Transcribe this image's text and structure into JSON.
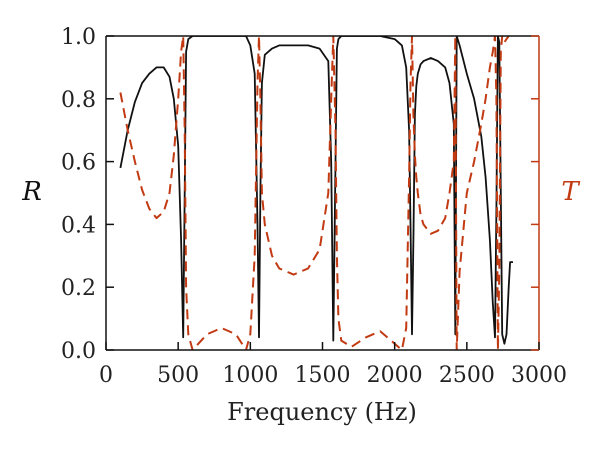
{
  "chart_data": {
    "type": "line",
    "xlabel": "Frequency (Hz)",
    "ylabel": "R",
    "y2label": "T",
    "xlim": [
      0,
      3000
    ],
    "ylim": [
      0,
      1
    ],
    "y2lim": [
      0,
      1
    ],
    "xticks": [
      "0",
      "500",
      "1000",
      "1500",
      "2000",
      "2500",
      "3000"
    ],
    "yticks": [
      "0.0",
      "0.2",
      "0.4",
      "0.6",
      "0.8",
      "1.0"
    ],
    "y2ticks": [
      "0.0",
      "0.2",
      "0.4",
      "0.6",
      "0.8",
      "1.0"
    ],
    "grid": false,
    "colors": {
      "R": "#111111",
      "T": "#c23a12",
      "axis": "#111111",
      "axis2": "#c23a12"
    },
    "series": [
      {
        "key": "R",
        "axis": "left",
        "style": "solid",
        "x": [
          100,
          150,
          200,
          250,
          300,
          350,
          400,
          440,
          470,
          500,
          520,
          535,
          545,
          555,
          570,
          600,
          700,
          800,
          900,
          970,
          1000,
          1030,
          1050,
          1060,
          1070,
          1080,
          1100,
          1150,
          1200,
          1300,
          1400,
          1480,
          1540,
          1560,
          1575,
          1590,
          1600,
          1610,
          1630,
          1700,
          1800,
          1900,
          2000,
          2050,
          2080,
          2100,
          2110,
          2120,
          2130,
          2140,
          2150,
          2160,
          2180,
          2200,
          2250,
          2300,
          2350,
          2380,
          2410,
          2420,
          2430,
          2450,
          2500,
          2550,
          2600,
          2630,
          2660,
          2680,
          2695,
          2705,
          2715,
          2725,
          2735,
          2745,
          2760,
          2775,
          2790,
          2800,
          2810,
          2820
        ],
        "y": [
          0.58,
          0.7,
          0.79,
          0.85,
          0.88,
          0.9,
          0.9,
          0.87,
          0.8,
          0.65,
          0.35,
          0.04,
          0.5,
          0.95,
          0.99,
          1.0,
          1.0,
          1.0,
          1.0,
          1.0,
          0.97,
          0.88,
          0.4,
          0.04,
          0.5,
          0.85,
          0.94,
          0.96,
          0.97,
          0.97,
          0.97,
          0.96,
          0.92,
          0.6,
          0.03,
          0.6,
          0.96,
          0.99,
          1.0,
          1.0,
          1.0,
          1.0,
          0.99,
          0.97,
          0.9,
          0.7,
          0.4,
          0.05,
          0.35,
          0.75,
          0.84,
          0.88,
          0.91,
          0.92,
          0.93,
          0.92,
          0.9,
          0.85,
          0.72,
          0.05,
          1.0,
          0.97,
          0.88,
          0.8,
          0.68,
          0.55,
          0.35,
          0.15,
          0.04,
          0.45,
          1.0,
          0.98,
          0.5,
          0.05,
          0.02,
          0.05,
          0.2,
          0.28,
          0.28,
          0.28
        ]
      },
      {
        "key": "T",
        "axis": "right",
        "style": "dashed",
        "x": [
          100,
          150,
          200,
          250,
          300,
          350,
          400,
          440,
          470,
          500,
          520,
          535,
          545,
          555,
          570,
          600,
          700,
          800,
          900,
          970,
          1000,
          1030,
          1050,
          1060,
          1070,
          1080,
          1100,
          1150,
          1200,
          1300,
          1400,
          1480,
          1540,
          1560,
          1575,
          1590,
          1600,
          1610,
          1630,
          1700,
          1800,
          1900,
          2000,
          2050,
          2080,
          2100,
          2110,
          2120,
          2130,
          2140,
          2150,
          2160,
          2180,
          2200,
          2250,
          2300,
          2350,
          2380,
          2410,
          2420,
          2430,
          2450,
          2500,
          2550,
          2600,
          2630,
          2660,
          2680,
          2695,
          2705,
          2715,
          2725,
          2735,
          2745,
          2760,
          2775,
          2790
        ],
        "y": [
          0.82,
          0.7,
          0.6,
          0.51,
          0.45,
          0.42,
          0.44,
          0.5,
          0.62,
          0.8,
          0.95,
          1.0,
          0.7,
          0.2,
          0.05,
          0.0,
          0.05,
          0.07,
          0.05,
          0.0,
          0.05,
          0.3,
          0.85,
          1.0,
          0.8,
          0.5,
          0.4,
          0.3,
          0.26,
          0.24,
          0.26,
          0.32,
          0.5,
          0.8,
          1.0,
          0.7,
          0.3,
          0.1,
          0.03,
          0.01,
          0.04,
          0.06,
          0.02,
          0.0,
          0.07,
          0.55,
          0.85,
          1.0,
          0.75,
          0.62,
          0.55,
          0.5,
          0.43,
          0.4,
          0.37,
          0.38,
          0.42,
          0.5,
          0.6,
          1.0,
          0.0,
          0.25,
          0.5,
          0.6,
          0.72,
          0.8,
          0.9,
          0.95,
          1.0,
          0.8,
          0.0,
          0.25,
          0.95,
          1.0,
          0.98,
          0.99,
          1.0
        ]
      }
    ]
  }
}
